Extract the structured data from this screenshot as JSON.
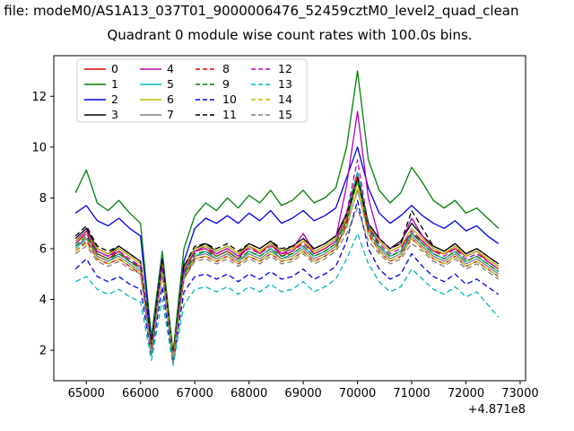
{
  "figure": {
    "file_title": "n file: modeM0/AS1A13_037T01_9000006476_52459cztM0_level2_quad_clean"
  },
  "chart_data": {
    "type": "line",
    "title": "Quadrant 0 module wise count rates with 100.0s bins.",
    "xlabel": "",
    "ylabel": "",
    "x_offset": "+4.871e8",
    "xlim": [
      64400,
      73100
    ],
    "ylim": [
      0.8,
      13.6
    ],
    "x_ticks": [
      65000,
      66000,
      67000,
      68000,
      69000,
      70000,
      71000,
      72000,
      73000
    ],
    "y_ticks": [
      2,
      4,
      6,
      8,
      10,
      12
    ],
    "legend_position": "upper left",
    "grid": false,
    "x": [
      64800,
      65000,
      65200,
      65400,
      65600,
      65800,
      66000,
      66200,
      66400,
      66600,
      66800,
      67000,
      67200,
      67400,
      67600,
      67800,
      68000,
      68200,
      68400,
      68600,
      68800,
      69000,
      69200,
      69400,
      69600,
      69800,
      70000,
      70200,
      70400,
      70600,
      70800,
      71000,
      71200,
      71400,
      71600,
      71800,
      72000,
      72200,
      72400,
      72600
    ],
    "series": [
      {
        "name": "0",
        "color": "#dd0000",
        "dash": "solid",
        "values": [
          6.2,
          6.6,
          5.8,
          5.6,
          5.9,
          5.5,
          5.3,
          2.2,
          5.4,
          1.8,
          5.2,
          5.9,
          6.0,
          5.7,
          5.9,
          5.6,
          6.1,
          5.8,
          6.2,
          5.7,
          5.9,
          6.3,
          5.8,
          6.0,
          6.3,
          7.1,
          8.8,
          6.8,
          6.3,
          5.9,
          6.1,
          6.6,
          6.3,
          5.9,
          5.8,
          6.0,
          5.7,
          5.9,
          5.5,
          5.2
        ]
      },
      {
        "name": "1",
        "color": "#007f00",
        "dash": "solid",
        "values": [
          8.2,
          9.1,
          7.8,
          7.5,
          7.9,
          7.4,
          7.0,
          2.5,
          5.9,
          1.9,
          6.0,
          7.3,
          7.8,
          7.5,
          8.0,
          7.6,
          8.1,
          7.8,
          8.3,
          7.7,
          7.9,
          8.3,
          7.8,
          8.0,
          8.4,
          10.0,
          13.0,
          9.5,
          8.3,
          7.8,
          8.2,
          9.2,
          8.6,
          7.9,
          7.6,
          7.9,
          7.4,
          7.6,
          7.2,
          6.8
        ]
      },
      {
        "name": "2",
        "color": "#0000dd",
        "dash": "solid",
        "values": [
          7.4,
          7.7,
          7.1,
          6.9,
          7.2,
          6.8,
          6.5,
          2.3,
          5.6,
          1.7,
          5.5,
          6.8,
          7.2,
          7.0,
          7.3,
          7.0,
          7.4,
          7.1,
          7.5,
          7.0,
          7.2,
          7.5,
          7.1,
          7.3,
          7.6,
          8.8,
          10.0,
          8.4,
          7.4,
          7.0,
          7.3,
          7.7,
          7.3,
          7.0,
          6.8,
          7.1,
          6.7,
          6.9,
          6.5,
          6.2
        ]
      },
      {
        "name": "3",
        "color": "#000000",
        "dash": "solid",
        "values": [
          6.4,
          6.8,
          6.0,
          5.8,
          6.1,
          5.8,
          5.5,
          2.0,
          5.3,
          1.6,
          5.3,
          6.0,
          6.2,
          5.9,
          6.1,
          5.8,
          6.2,
          6.0,
          6.3,
          5.9,
          6.1,
          6.4,
          6.0,
          6.2,
          6.5,
          7.4,
          9.0,
          7.0,
          6.4,
          6.0,
          6.3,
          7.0,
          6.5,
          6.1,
          5.9,
          6.2,
          5.8,
          6.0,
          5.7,
          5.4
        ]
      },
      {
        "name": "4",
        "color": "#b300b3",
        "dash": "solid",
        "values": [
          6.3,
          6.7,
          5.9,
          5.7,
          6.0,
          5.7,
          5.4,
          2.1,
          5.5,
          1.7,
          5.1,
          5.9,
          6.1,
          5.8,
          6.0,
          5.7,
          6.1,
          5.9,
          6.2,
          5.8,
          6.0,
          6.6,
          5.9,
          6.1,
          6.4,
          8.5,
          11.4,
          8.0,
          6.4,
          6.0,
          6.2,
          7.2,
          6.5,
          6.0,
          5.8,
          6.1,
          5.7,
          5.9,
          5.6,
          5.3
        ]
      },
      {
        "name": "5",
        "color": "#00b8b8",
        "dash": "solid",
        "values": [
          6.0,
          6.4,
          5.7,
          5.5,
          5.8,
          5.5,
          5.2,
          1.9,
          5.2,
          1.5,
          5.0,
          5.7,
          5.9,
          5.6,
          5.8,
          5.5,
          5.9,
          5.7,
          6.0,
          5.6,
          5.8,
          6.1,
          5.7,
          5.9,
          6.2,
          7.3,
          9.0,
          7.0,
          6.1,
          5.7,
          5.9,
          6.6,
          6.2,
          5.8,
          5.6,
          5.9,
          5.5,
          5.7,
          5.4,
          5.1
        ]
      },
      {
        "name": "6",
        "color": "#b8b800",
        "dash": "solid",
        "values": [
          6.3,
          6.6,
          6.0,
          5.8,
          6.0,
          5.7,
          5.4,
          2.2,
          5.4,
          1.8,
          5.2,
          6.0,
          6.1,
          5.9,
          6.1,
          5.8,
          6.1,
          5.9,
          6.2,
          5.9,
          6.0,
          6.3,
          5.9,
          6.1,
          6.4,
          7.2,
          8.6,
          6.9,
          6.3,
          5.9,
          6.1,
          6.8,
          6.4,
          6.0,
          5.8,
          6.1,
          5.7,
          5.9,
          5.6,
          5.3
        ]
      },
      {
        "name": "7",
        "color": "#7f7f7f",
        "dash": "solid",
        "values": [
          6.1,
          6.4,
          5.7,
          5.5,
          5.7,
          5.4,
          5.1,
          2.0,
          5.1,
          1.6,
          4.9,
          5.7,
          5.8,
          5.6,
          5.8,
          5.5,
          5.8,
          5.6,
          5.9,
          5.6,
          5.7,
          6.0,
          5.6,
          5.8,
          6.1,
          6.9,
          8.3,
          6.7,
          6.0,
          5.6,
          5.8,
          6.5,
          6.1,
          5.7,
          5.5,
          5.8,
          5.4,
          5.6,
          5.3,
          5.0
        ]
      },
      {
        "name": "8",
        "color": "#dd0000",
        "dash": "dashed",
        "values": [
          5.9,
          6.3,
          5.6,
          5.4,
          5.6,
          5.3,
          5.0,
          2.1,
          5.0,
          1.7,
          4.8,
          5.6,
          5.7,
          5.5,
          5.7,
          5.4,
          5.7,
          5.5,
          5.8,
          5.5,
          5.6,
          5.9,
          5.5,
          5.7,
          6.0,
          7.0,
          8.9,
          6.6,
          5.9,
          5.5,
          5.7,
          6.4,
          6.0,
          5.6,
          5.4,
          5.7,
          5.3,
          5.5,
          5.2,
          4.9
        ]
      },
      {
        "name": "9",
        "color": "#007f00",
        "dash": "dashed",
        "values": [
          6.1,
          6.5,
          5.8,
          5.6,
          5.8,
          5.5,
          5.2,
          2.3,
          5.2,
          1.9,
          5.0,
          5.8,
          5.9,
          5.7,
          5.9,
          5.6,
          5.9,
          5.7,
          6.0,
          5.7,
          5.8,
          6.1,
          5.7,
          5.9,
          6.2,
          7.1,
          8.7,
          6.8,
          6.1,
          5.7,
          5.9,
          6.6,
          6.2,
          5.8,
          5.6,
          5.9,
          5.5,
          5.7,
          5.4,
          5.1
        ]
      },
      {
        "name": "10",
        "color": "#0000dd",
        "dash": "dashed",
        "values": [
          5.2,
          5.6,
          4.9,
          4.7,
          4.9,
          4.6,
          4.4,
          1.8,
          4.5,
          1.5,
          4.3,
          4.9,
          5.0,
          4.8,
          5.0,
          4.7,
          5.0,
          4.8,
          5.1,
          4.8,
          4.9,
          5.2,
          4.8,
          5.0,
          5.3,
          6.3,
          7.9,
          6.0,
          5.2,
          4.8,
          5.0,
          5.8,
          5.3,
          4.9,
          4.7,
          5.0,
          4.6,
          4.8,
          4.5,
          4.2
        ]
      },
      {
        "name": "11",
        "color": "#000000",
        "dash": "dashed",
        "values": [
          6.5,
          6.9,
          6.1,
          5.9,
          6.1,
          5.8,
          5.5,
          2.2,
          5.5,
          1.8,
          5.3,
          6.1,
          6.2,
          6.0,
          6.2,
          5.9,
          6.2,
          6.0,
          6.3,
          6.0,
          6.1,
          6.4,
          6.0,
          6.2,
          6.5,
          7.3,
          8.8,
          7.0,
          6.4,
          6.0,
          6.2,
          7.5,
          6.8,
          6.1,
          5.9,
          6.2,
          5.8,
          6.0,
          5.7,
          5.4
        ]
      },
      {
        "name": "12",
        "color": "#b300b3",
        "dash": "dashed",
        "values": [
          6.2,
          6.6,
          5.9,
          5.7,
          5.9,
          5.6,
          5.3,
          2.0,
          5.3,
          1.6,
          5.1,
          5.9,
          6.0,
          5.8,
          6.0,
          5.7,
          6.0,
          5.8,
          6.1,
          5.8,
          5.9,
          6.2,
          5.8,
          6.0,
          6.3,
          7.4,
          9.5,
          6.9,
          6.2,
          5.8,
          6.0,
          6.7,
          6.3,
          5.9,
          5.7,
          6.0,
          5.6,
          5.8,
          5.5,
          5.2
        ]
      },
      {
        "name": "13",
        "color": "#00b8b8",
        "dash": "dashed",
        "values": [
          4.7,
          4.9,
          4.4,
          4.2,
          4.4,
          4.1,
          3.9,
          1.6,
          4.0,
          1.4,
          3.8,
          4.4,
          4.5,
          4.3,
          4.5,
          4.2,
          4.5,
          4.3,
          4.6,
          4.3,
          4.4,
          4.7,
          4.3,
          4.5,
          4.8,
          5.6,
          6.6,
          5.4,
          4.7,
          4.3,
          4.5,
          5.2,
          4.8,
          4.4,
          4.2,
          4.5,
          4.1,
          4.3,
          3.8,
          3.3
        ]
      },
      {
        "name": "14",
        "color": "#b8b800",
        "dash": "dashed",
        "values": [
          5.9,
          6.2,
          5.6,
          5.4,
          5.6,
          5.3,
          5.1,
          1.9,
          5.1,
          1.7,
          4.9,
          5.6,
          5.7,
          5.5,
          5.7,
          5.4,
          5.7,
          5.5,
          5.8,
          5.5,
          5.6,
          5.9,
          5.5,
          5.7,
          6.0,
          6.8,
          8.4,
          6.5,
          5.9,
          5.5,
          5.7,
          6.4,
          6.0,
          5.6,
          5.4,
          5.7,
          5.3,
          5.5,
          5.2,
          4.9
        ]
      },
      {
        "name": "15",
        "color": "#7f7f7f",
        "dash": "dashed",
        "values": [
          5.8,
          6.1,
          5.5,
          5.3,
          5.5,
          5.2,
          5.0,
          1.8,
          5.0,
          1.5,
          4.8,
          5.5,
          5.6,
          5.4,
          5.6,
          5.3,
          5.6,
          5.4,
          5.7,
          5.4,
          5.5,
          5.8,
          5.4,
          5.6,
          5.9,
          6.6,
          7.6,
          6.3,
          5.8,
          5.4,
          5.6,
          6.2,
          5.9,
          5.5,
          5.3,
          5.6,
          5.2,
          5.4,
          5.1,
          4.8
        ]
      }
    ]
  }
}
